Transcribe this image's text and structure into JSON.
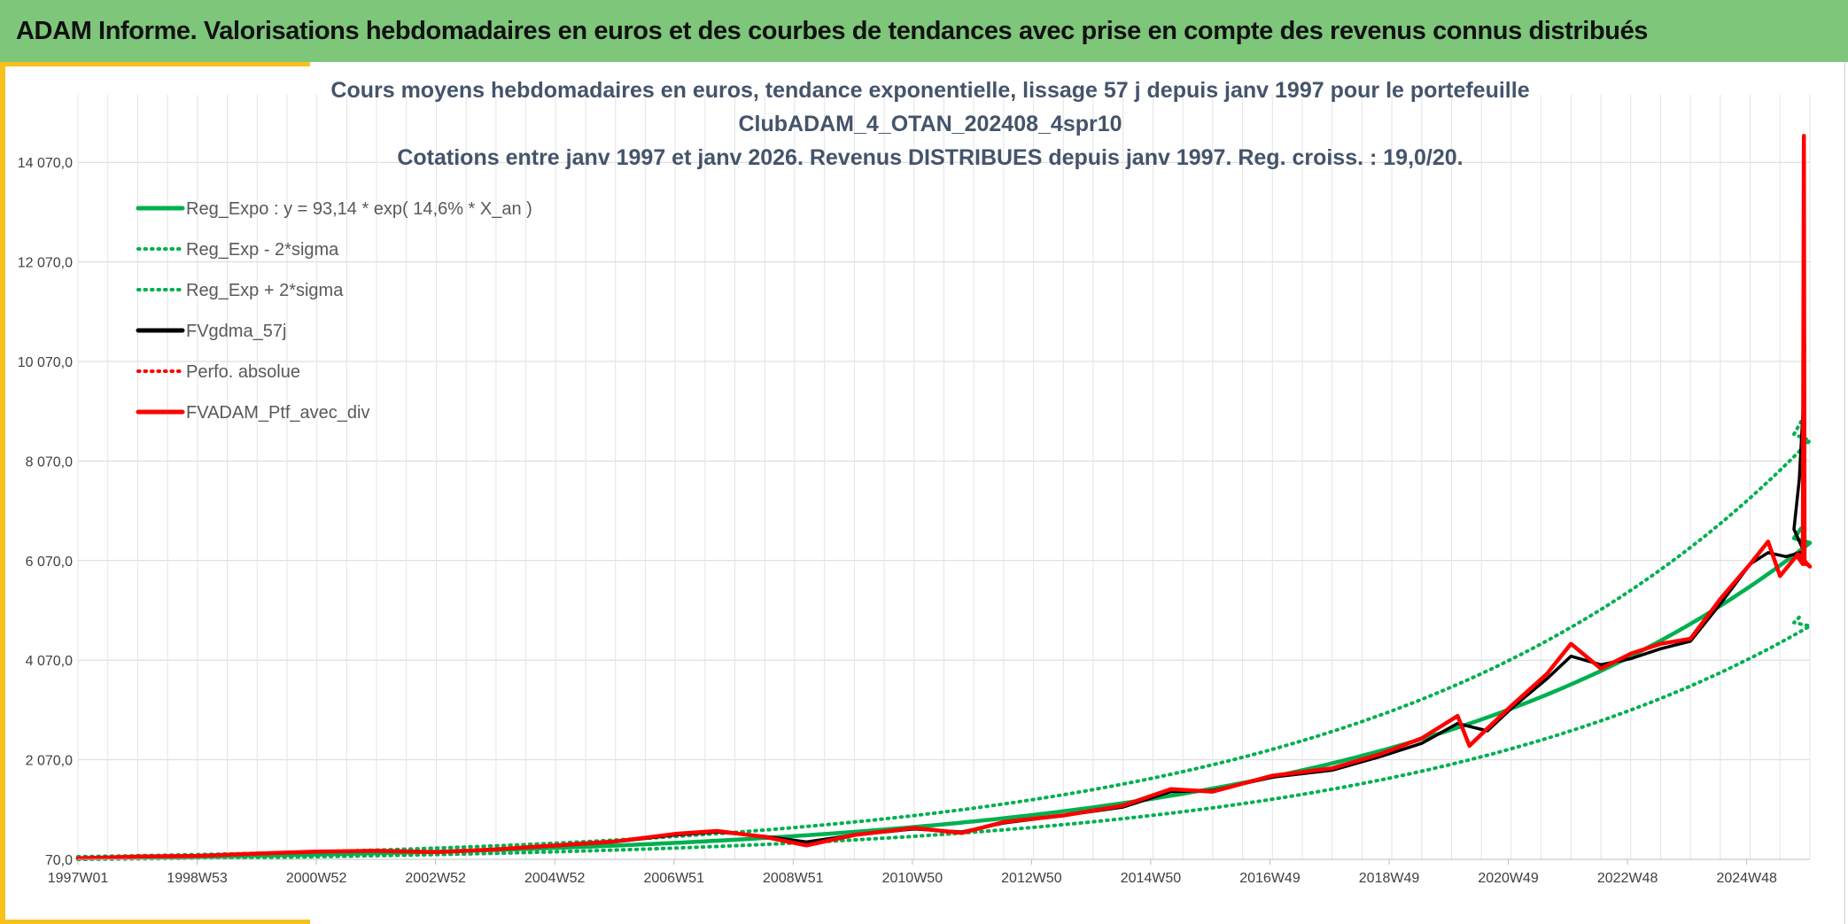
{
  "header": {
    "title": "ADAM Informe. Valorisations hebdomadaires en euros et des courbes de tendances avec prise en compte des revenus connus distribués"
  },
  "colors": {
    "banner": "#7dc67a",
    "accent": "#f5c11a",
    "regression": "#00b050",
    "smoothed": "#000000",
    "portfolio": "#ff0000"
  },
  "chart_data": {
    "type": "line",
    "title_lines": [
      "Cours moyens hebdomadaires en euros, tendance exponentielle, lissage 57 j depuis janv 1997 pour le portefeuille",
      "ClubADAM_4_OTAN_202408_4spr10",
      "Cotations entre janv 1997 et janv 2026. Revenus DISTRIBUES depuis janv 1997. Reg. croiss. : 19,0/20."
    ],
    "xlabel": "",
    "ylabel": "",
    "x_ticks": [
      "1997W01",
      "1998W53",
      "2000W52",
      "2002W52",
      "2004W52",
      "2006W51",
      "2008W51",
      "2010W50",
      "2012W50",
      "2014W50",
      "2016W49",
      "2018W49",
      "2020W49",
      "2022W48",
      "2024W48"
    ],
    "y_ticks": [
      "70,0",
      "2 070,0",
      "4 070,0",
      "6 070,0",
      "8 070,0",
      "10 070,0",
      "12 070,0",
      "14 070,0"
    ],
    "ylim": [
      70,
      15070
    ],
    "xlim": [
      1997.0,
      2026.0
    ],
    "grid": true,
    "legend_position": "top-left",
    "series": [
      {
        "name": "Reg_Expo : y = 93,14 * exp( 14,6% *  X_an )",
        "style": "solid",
        "color": "#00b050",
        "formula": {
          "a": 93.14,
          "k": 0.146,
          "factor": 1.0
        }
      },
      {
        "name": "Reg_Exp - 2*sigma",
        "style": "dotted",
        "color": "#00b050",
        "formula": {
          "a": 93.14,
          "k": 0.146,
          "factor": 0.74
        }
      },
      {
        "name": "Reg_Exp + 2*sigma",
        "style": "dotted",
        "color": "#00b050",
        "formula": {
          "a": 93.14,
          "k": 0.146,
          "factor": 1.32
        }
      },
      {
        "name": "FVgdma_57j",
        "style": "solid",
        "color": "#000000",
        "points": [
          [
            1997.0,
            90
          ],
          [
            1998.0,
            120
          ],
          [
            1999.0,
            140
          ],
          [
            2000.0,
            180
          ],
          [
            2001.0,
            220
          ],
          [
            2002.0,
            240
          ],
          [
            2003.0,
            220
          ],
          [
            2004.0,
            270
          ],
          [
            2005.0,
            340
          ],
          [
            2006.0,
            420
          ],
          [
            2007.0,
            560
          ],
          [
            2007.7,
            620
          ],
          [
            2008.5,
            530
          ],
          [
            2009.2,
            420
          ],
          [
            2010.0,
            560
          ],
          [
            2011.0,
            680
          ],
          [
            2011.8,
            620
          ],
          [
            2012.5,
            800
          ],
          [
            2013.5,
            950
          ],
          [
            2014.5,
            1120
          ],
          [
            2015.3,
            1430
          ],
          [
            2016.0,
            1450
          ],
          [
            2017.0,
            1720
          ],
          [
            2018.0,
            1860
          ],
          [
            2018.8,
            2130
          ],
          [
            2019.5,
            2400
          ],
          [
            2020.1,
            2800
          ],
          [
            2020.6,
            2650
          ],
          [
            2021.0,
            3100
          ],
          [
            2021.6,
            3700
          ],
          [
            2022.0,
            4150
          ],
          [
            2022.5,
            3980
          ],
          [
            2023.0,
            4100
          ],
          [
            2023.5,
            4300
          ],
          [
            2024.0,
            4450
          ],
          [
            2024.5,
            5200
          ],
          [
            2025.0,
            6000
          ],
          [
            2025.3,
            6230
          ],
          [
            2025.6,
            6150
          ],
          [
            2025.9,
            6250
          ],
          [
            2026.1,
            6700
          ],
          [
            2026.25,
            7700
          ],
          [
            2026.35,
            9000
          ],
          [
            2026.4,
            10400
          ]
        ]
      },
      {
        "name": "Perfo. absolue",
        "style": "dotted",
        "color": "#ff0000",
        "points": []
      },
      {
        "name": "FVADAM_Ptf_avec_div",
        "style": "solid",
        "color": "#ff0000",
        "points": [
          [
            1997.0,
            90
          ],
          [
            1998.0,
            125
          ],
          [
            1999.0,
            140
          ],
          [
            2000.0,
            185
          ],
          [
            2001.0,
            225
          ],
          [
            2002.0,
            240
          ],
          [
            2003.0,
            215
          ],
          [
            2004.0,
            270
          ],
          [
            2005.0,
            350
          ],
          [
            2006.0,
            430
          ],
          [
            2007.0,
            580
          ],
          [
            2007.7,
            640
          ],
          [
            2008.5,
            520
          ],
          [
            2009.2,
            350
          ],
          [
            2010.0,
            560
          ],
          [
            2011.0,
            700
          ],
          [
            2011.8,
            600
          ],
          [
            2012.5,
            820
          ],
          [
            2013.5,
            950
          ],
          [
            2014.5,
            1150
          ],
          [
            2015.3,
            1480
          ],
          [
            2016.0,
            1430
          ],
          [
            2017.0,
            1750
          ],
          [
            2018.0,
            1900
          ],
          [
            2018.8,
            2180
          ],
          [
            2019.5,
            2500
          ],
          [
            2020.1,
            2950
          ],
          [
            2020.3,
            2350
          ],
          [
            2020.6,
            2700
          ],
          [
            2021.0,
            3150
          ],
          [
            2021.6,
            3800
          ],
          [
            2022.0,
            4400
          ],
          [
            2022.5,
            3900
          ],
          [
            2023.0,
            4200
          ],
          [
            2023.5,
            4400
          ],
          [
            2024.0,
            4500
          ],
          [
            2024.5,
            5300
          ],
          [
            2025.0,
            6000
          ],
          [
            2025.3,
            6450
          ],
          [
            2025.5,
            5760
          ],
          [
            2025.8,
            6200
          ],
          [
            2026.0,
            5950
          ],
          [
            2026.2,
            6150
          ],
          [
            2026.35,
            6000
          ],
          [
            2026.38,
            14600
          ],
          [
            2026.4,
            6000
          ]
        ]
      }
    ]
  }
}
